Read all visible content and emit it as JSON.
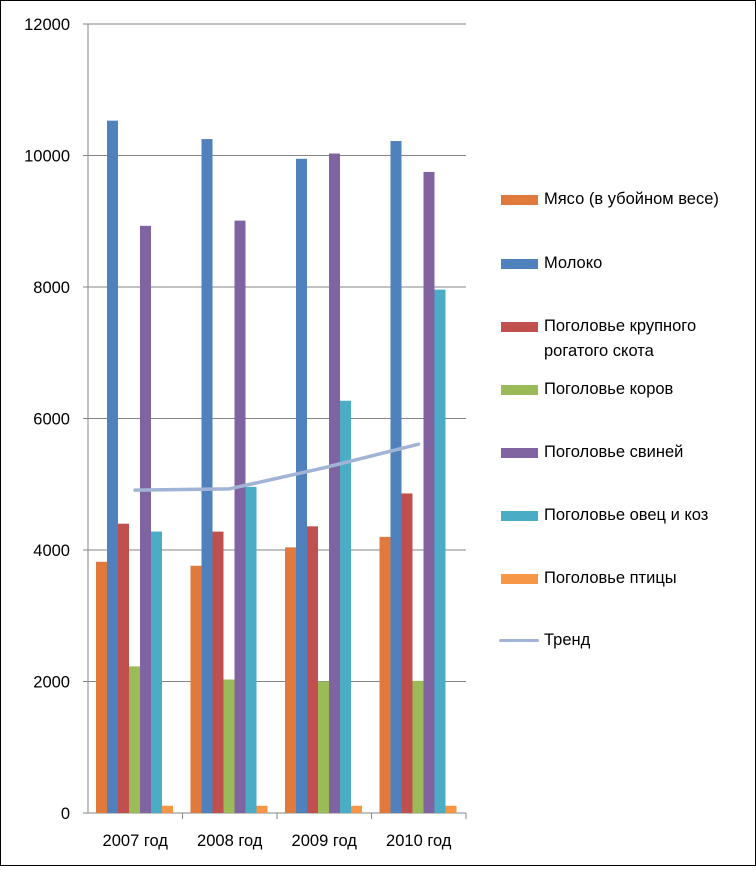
{
  "chart_data": {
    "type": "bar",
    "title": "",
    "xlabel": "",
    "ylabel": "",
    "ylim": [
      0,
      12000
    ],
    "yticks": [
      "0",
      "2000",
      "4000",
      "6000",
      "8000",
      "10000",
      "12000"
    ],
    "grid": true,
    "legend_position": "right",
    "categories": [
      "2007 год",
      "2008 год",
      "2009 год",
      "2010 год"
    ],
    "series": [
      {
        "name": "Мясо (в убойном весе)",
        "color": "#e07a3c",
        "values": [
          3820,
          3760,
          4040,
          4200
        ]
      },
      {
        "name": "Молоко",
        "color": "#4f81bd",
        "values": [
          10530,
          10250,
          9950,
          10220
        ]
      },
      {
        "name": "Поголовье крупного рогатого скота",
        "color": "#c0504d",
        "values": [
          4400,
          4280,
          4360,
          4860
        ]
      },
      {
        "name": "Поголовье коров",
        "color": "#9bbb59",
        "values": [
          2230,
          2030,
          2000,
          2010
        ]
      },
      {
        "name": "Поголовье свиней",
        "color": "#8064a2",
        "values": [
          8930,
          9010,
          10030,
          9750
        ]
      },
      {
        "name": "Поголовье овец и коз",
        "color": "#4bacc6",
        "values": [
          4280,
          4960,
          6270,
          7960
        ]
      },
      {
        "name": "Поголовье птицы",
        "color": "#f79646",
        "values": [
          110,
          110,
          110,
          110
        ]
      }
    ],
    "trend": {
      "name": "Тренд",
      "color": "#a2b4d6",
      "values": [
        4910,
        4930,
        5250,
        5610
      ]
    }
  }
}
